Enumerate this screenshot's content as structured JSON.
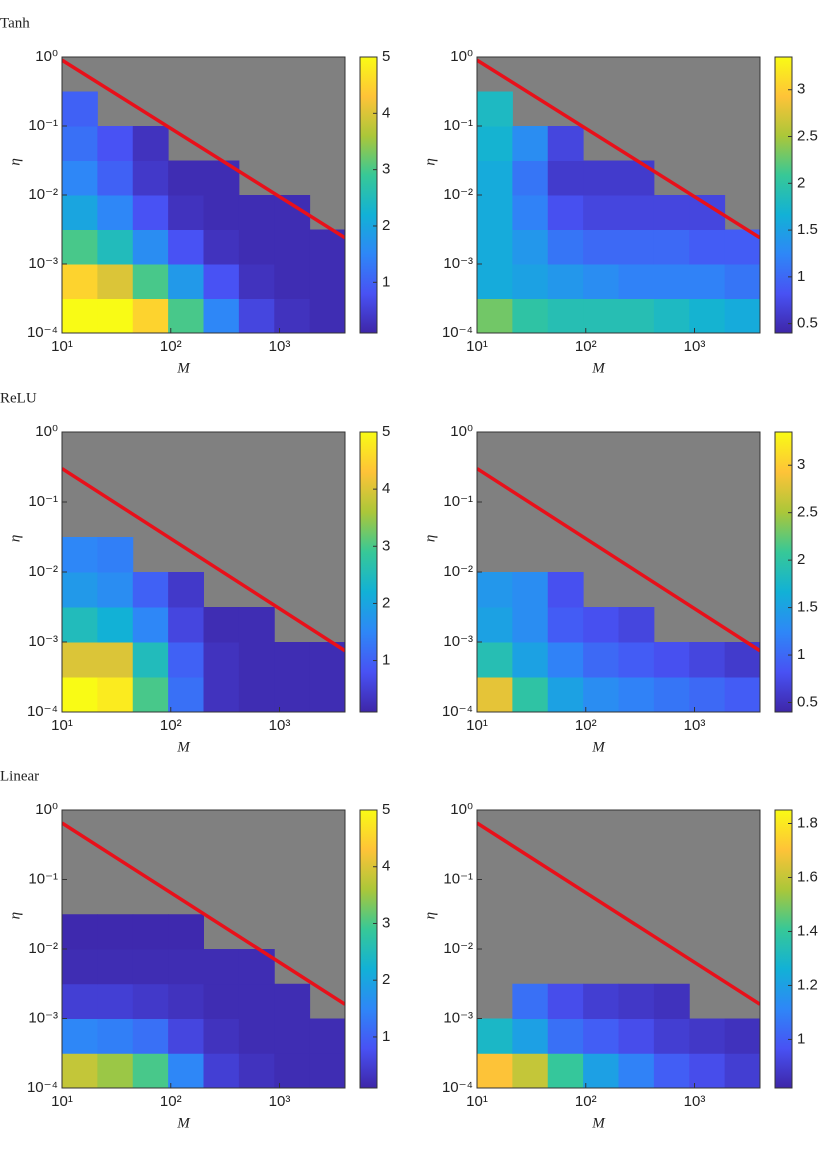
{
  "chart_data": [
    {
      "type": "heatmap",
      "title": "Tanh",
      "xlabel": "M",
      "ylabel": "η",
      "log_x": true,
      "log_y": true,
      "colormap": "parula",
      "background": "#808080",
      "xlim": [
        10,
        4000
      ],
      "ylim": [
        0.0001,
        1
      ],
      "xticks": [
        {
          "value": 10,
          "label": "10¹"
        },
        {
          "value": 100,
          "label": "10²"
        },
        {
          "value": 1000,
          "label": "10³"
        }
      ],
      "yticks": [
        {
          "value": 0.0001,
          "label": "10⁻⁴"
        },
        {
          "value": 0.001,
          "label": "10⁻³"
        },
        {
          "value": 0.01,
          "label": "10⁻²"
        },
        {
          "value": 0.1,
          "label": "10⁻¹"
        },
        {
          "value": 1,
          "label": "10⁰"
        }
      ],
      "clim": [
        0.1,
        5
      ],
      "cticks": [
        1,
        2,
        3,
        4,
        5
      ],
      "z": [
        [
          5,
          5,
          4.5,
          3,
          1.5,
          0.6,
          0.3,
          0.2
        ],
        [
          4.5,
          4,
          3,
          1.8,
          0.8,
          0.3,
          0.2,
          0.2
        ],
        [
          3,
          2.5,
          1.6,
          0.8,
          0.3,
          0.2,
          0.2,
          0.2
        ],
        [
          2,
          1.5,
          0.8,
          0.3,
          0.2,
          0.2,
          0.2,
          null
        ],
        [
          1.5,
          1,
          0.4,
          0.2,
          0.2,
          null,
          null,
          null
        ],
        [
          1.2,
          0.8,
          0.3,
          null,
          null,
          null,
          null,
          null
        ],
        [
          1,
          null,
          null,
          null,
          null,
          null,
          null,
          null
        ],
        [
          null,
          null,
          null,
          null,
          null,
          null,
          null,
          null
        ]
      ],
      "line": {
        "x": [
          10,
          4000
        ],
        "y": [
          0.9,
          0.0024
        ],
        "color": "#e8101a"
      }
    },
    {
      "type": "heatmap",
      "xlabel": "M",
      "ylabel": "η",
      "log_x": true,
      "log_y": true,
      "colormap": "parula",
      "background": "#808080",
      "xlim": [
        10,
        4000
      ],
      "ylim": [
        0.0001,
        1
      ],
      "xticks": [
        {
          "value": 10,
          "label": "10¹"
        },
        {
          "value": 100,
          "label": "10²"
        },
        {
          "value": 1000,
          "label": "10³"
        }
      ],
      "yticks": [
        {
          "value": 0.0001,
          "label": "10⁻⁴"
        },
        {
          "value": 0.001,
          "label": "10⁻³"
        },
        {
          "value": 0.01,
          "label": "10⁻²"
        },
        {
          "value": 0.1,
          "label": "10⁻¹"
        },
        {
          "value": 1,
          "label": "10⁰"
        }
      ],
      "clim": [
        0.4,
        3.35
      ],
      "cticks": [
        0.5,
        1,
        1.5,
        2,
        2.5,
        3
      ],
      "z": [
        [
          2.3,
          2,
          1.9,
          1.9,
          1.9,
          1.8,
          1.7,
          1.6
        ],
        [
          1.6,
          1.5,
          1.4,
          1.3,
          1.2,
          1.2,
          1.2,
          1.1
        ],
        [
          1.6,
          1.4,
          1.1,
          1,
          1,
          1,
          0.9,
          0.9
        ],
        [
          1.6,
          1.2,
          0.8,
          0.7,
          0.7,
          0.7,
          0.7,
          null
        ],
        [
          1.6,
          1.1,
          0.6,
          0.6,
          0.6,
          null,
          null,
          null
        ],
        [
          1.7,
          1.3,
          0.7,
          null,
          null,
          null,
          null,
          null
        ],
        [
          1.8,
          null,
          null,
          null,
          null,
          null,
          null,
          null
        ],
        [
          null,
          null,
          null,
          null,
          null,
          null,
          null,
          null
        ]
      ],
      "line": {
        "x": [
          10,
          4000
        ],
        "y": [
          0.9,
          0.0024
        ],
        "color": "#e8101a"
      }
    },
    {
      "type": "heatmap",
      "title": "ReLU",
      "xlabel": "M",
      "ylabel": "η",
      "log_x": true,
      "log_y": true,
      "colormap": "parula",
      "background": "#808080",
      "xlim": [
        10,
        4000
      ],
      "ylim": [
        0.0001,
        1
      ],
      "xticks": [
        {
          "value": 10,
          "label": "10¹"
        },
        {
          "value": 100,
          "label": "10²"
        },
        {
          "value": 1000,
          "label": "10³"
        }
      ],
      "yticks": [
        {
          "value": 0.0001,
          "label": "10⁻⁴"
        },
        {
          "value": 0.001,
          "label": "10⁻³"
        },
        {
          "value": 0.01,
          "label": "10⁻²"
        },
        {
          "value": 0.1,
          "label": "10⁻¹"
        },
        {
          "value": 1,
          "label": "10⁰"
        }
      ],
      "clim": [
        0.1,
        5
      ],
      "cticks": [
        1,
        2,
        3,
        4,
        5
      ],
      "z": [
        [
          5,
          4.8,
          3,
          1.2,
          0.3,
          0.2,
          0.2,
          0.2
        ],
        [
          4,
          4,
          2.5,
          1,
          0.3,
          0.2,
          0.2,
          0.2
        ],
        [
          2.5,
          2.2,
          1.5,
          0.6,
          0.2,
          0.2,
          null,
          null
        ],
        [
          1.8,
          1.6,
          1,
          0.4,
          null,
          null,
          null,
          null
        ],
        [
          1.5,
          1.4,
          null,
          null,
          null,
          null,
          null,
          null
        ],
        [
          null,
          null,
          null,
          null,
          null,
          null,
          null,
          null
        ],
        [
          null,
          null,
          null,
          null,
          null,
          null,
          null,
          null
        ],
        [
          null,
          null,
          null,
          null,
          null,
          null,
          null,
          null
        ]
      ],
      "line": {
        "x": [
          10,
          4000
        ],
        "y": [
          0.3,
          0.00075
        ],
        "color": "#e8101a"
      }
    },
    {
      "type": "heatmap",
      "xlabel": "M",
      "ylabel": "η",
      "log_x": true,
      "log_y": true,
      "colormap": "parula",
      "background": "#808080",
      "xlim": [
        10,
        4000
      ],
      "ylim": [
        0.0001,
        1
      ],
      "xticks": [
        {
          "value": 10,
          "label": "10¹"
        },
        {
          "value": 100,
          "label": "10²"
        },
        {
          "value": 1000,
          "label": "10³"
        }
      ],
      "yticks": [
        {
          "value": 0.0001,
          "label": "10⁻⁴"
        },
        {
          "value": 0.001,
          "label": "10⁻³"
        },
        {
          "value": 0.01,
          "label": "10⁻²"
        },
        {
          "value": 0.1,
          "label": "10⁻¹"
        },
        {
          "value": 1,
          "label": "10⁰"
        }
      ],
      "clim": [
        0.4,
        3.35
      ],
      "cticks": [
        0.5,
        1,
        1.5,
        2,
        2.5,
        3
      ],
      "z": [
        [
          2.8,
          2,
          1.5,
          1.3,
          1.2,
          1.1,
          1,
          0.9
        ],
        [
          1.9,
          1.5,
          1.2,
          1,
          0.9,
          0.8,
          0.7,
          0.6
        ],
        [
          1.5,
          1.3,
          0.9,
          0.8,
          0.7,
          null,
          null,
          null
        ],
        [
          1.4,
          1.3,
          0.8,
          null,
          null,
          null,
          null,
          null
        ],
        [
          null,
          null,
          null,
          null,
          null,
          null,
          null,
          null
        ],
        [
          null,
          null,
          null,
          null,
          null,
          null,
          null,
          null
        ],
        [
          null,
          null,
          null,
          null,
          null,
          null,
          null,
          null
        ],
        [
          null,
          null,
          null,
          null,
          null,
          null,
          null,
          null
        ]
      ],
      "line": {
        "x": [
          10,
          4000
        ],
        "y": [
          0.3,
          0.00075
        ],
        "color": "#e8101a"
      }
    },
    {
      "type": "heatmap",
      "title": "Linear",
      "xlabel": "M",
      "ylabel": "η",
      "log_x": true,
      "log_y": true,
      "colormap": "parula",
      "background": "#808080",
      "xlim": [
        10,
        4000
      ],
      "ylim": [
        0.0001,
        1
      ],
      "xticks": [
        {
          "value": 10,
          "label": "10¹"
        },
        {
          "value": 100,
          "label": "10²"
        },
        {
          "value": 1000,
          "label": "10³"
        }
      ],
      "yticks": [
        {
          "value": 0.0001,
          "label": "10⁻⁴"
        },
        {
          "value": 0.001,
          "label": "10⁻³"
        },
        {
          "value": 0.01,
          "label": "10⁻²"
        },
        {
          "value": 0.1,
          "label": "10⁻¹"
        },
        {
          "value": 1,
          "label": "10⁰"
        }
      ],
      "clim": [
        0.1,
        5
      ],
      "cticks": [
        1,
        2,
        3,
        4,
        5
      ],
      "z": [
        [
          3.8,
          3.5,
          3,
          1.5,
          0.5,
          0.3,
          0.2,
          0.2
        ],
        [
          1.5,
          1.4,
          1.2,
          0.6,
          0.3,
          0.2,
          0.2,
          0.2
        ],
        [
          0.5,
          0.5,
          0.4,
          0.3,
          0.2,
          0.2,
          0.2,
          null
        ],
        [
          0.2,
          0.2,
          0.2,
          0.2,
          0.2,
          0.2,
          null,
          null
        ],
        [
          0.15,
          0.15,
          0.15,
          0.15,
          null,
          null,
          null,
          null
        ],
        [
          null,
          null,
          null,
          null,
          null,
          null,
          null,
          null
        ],
        [
          null,
          null,
          null,
          null,
          null,
          null,
          null,
          null
        ],
        [
          null,
          null,
          null,
          null,
          null,
          null,
          null,
          null
        ]
      ],
      "line": {
        "x": [
          10,
          4000
        ],
        "y": [
          0.65,
          0.0016
        ],
        "color": "#e8101a"
      }
    },
    {
      "type": "heatmap",
      "xlabel": "M",
      "ylabel": "η",
      "log_x": true,
      "log_y": true,
      "colormap": "parula",
      "background": "#808080",
      "xlim": [
        10,
        4000
      ],
      "ylim": [
        0.0001,
        1
      ],
      "xticks": [
        {
          "value": 10,
          "label": "10¹"
        },
        {
          "value": 100,
          "label": "10²"
        },
        {
          "value": 1000,
          "label": "10³"
        }
      ],
      "yticks": [
        {
          "value": 0.0001,
          "label": "10⁻⁴"
        },
        {
          "value": 0.001,
          "label": "10⁻³"
        },
        {
          "value": 0.01,
          "label": "10⁻²"
        },
        {
          "value": 0.1,
          "label": "10⁻¹"
        },
        {
          "value": 1,
          "label": "10⁰"
        }
      ],
      "clim": [
        0.82,
        1.85
      ],
      "cticks": [
        1,
        1.2,
        1.4,
        1.6,
        1.8
      ],
      "z": [
        [
          1.7,
          1.6,
          1.4,
          1.2,
          1.1,
          1,
          0.95,
          0.9
        ],
        [
          1.3,
          1.2,
          1.05,
          1,
          0.95,
          0.9,
          0.88,
          0.86
        ],
        [
          null,
          1.05,
          0.95,
          0.9,
          0.88,
          0.86,
          null,
          null
        ],
        [
          null,
          null,
          null,
          null,
          null,
          null,
          null,
          null
        ],
        [
          null,
          null,
          null,
          null,
          null,
          null,
          null,
          null
        ],
        [
          null,
          null,
          null,
          null,
          null,
          null,
          null,
          null
        ],
        [
          null,
          null,
          null,
          null,
          null,
          null,
          null,
          null
        ],
        [
          null,
          null,
          null,
          null,
          null,
          null,
          null,
          null
        ]
      ],
      "line": {
        "x": [
          10,
          4000
        ],
        "y": [
          0.65,
          0.0016
        ],
        "color": "#e8101a"
      }
    }
  ]
}
